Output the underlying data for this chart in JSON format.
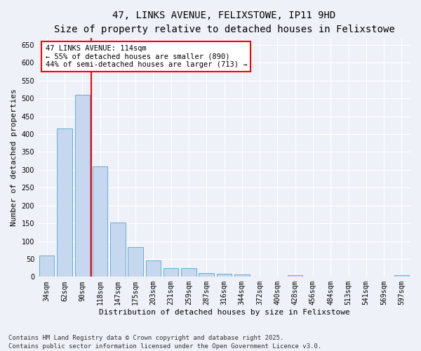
{
  "title_line1": "47, LINKS AVENUE, FELIXSTOWE, IP11 9HD",
  "title_line2": "Size of property relative to detached houses in Felixstowe",
  "xlabel": "Distribution of detached houses by size in Felixstowe",
  "ylabel": "Number of detached properties",
  "categories": [
    "34sqm",
    "62sqm",
    "90sqm",
    "118sqm",
    "147sqm",
    "175sqm",
    "203sqm",
    "231sqm",
    "259sqm",
    "287sqm",
    "316sqm",
    "344sqm",
    "372sqm",
    "400sqm",
    "428sqm",
    "456sqm",
    "484sqm",
    "513sqm",
    "541sqm",
    "569sqm",
    "597sqm"
  ],
  "values": [
    60,
    415,
    510,
    310,
    152,
    83,
    46,
    25,
    25,
    10,
    8,
    6,
    0,
    0,
    5,
    0,
    0,
    0,
    0,
    0,
    5
  ],
  "bar_color": "#c5d8f0",
  "bar_edge_color": "#6aaad4",
  "vline_color": "red",
  "vline_x_index": 2.5,
  "annotation_text": "47 LINKS AVENUE: 114sqm\n← 55% of detached houses are smaller (890)\n44% of semi-detached houses are larger (713) →",
  "annotation_box_edgecolor": "red",
  "annotation_box_facecolor": "white",
  "ylim": [
    0,
    670
  ],
  "yticks": [
    0,
    50,
    100,
    150,
    200,
    250,
    300,
    350,
    400,
    450,
    500,
    550,
    600,
    650
  ],
  "footnote": "Contains HM Land Registry data © Crown copyright and database right 2025.\nContains public sector information licensed under the Open Government Licence v3.0.",
  "bg_color": "#eef2f8",
  "grid_color": "white",
  "title_fontsize": 10,
  "subtitle_fontsize": 9,
  "axis_label_fontsize": 8,
  "tick_fontsize": 7,
  "annotation_fontsize": 7.5,
  "footnote_fontsize": 6.5
}
